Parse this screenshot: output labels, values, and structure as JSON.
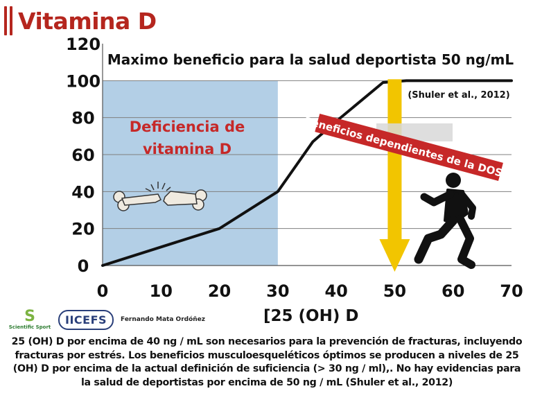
{
  "slide": {
    "title": "Vitamina D",
    "caption": "25 (OH) D por encima de 40 ng / mL son necesarios para la prevención de fracturas, incluyendo fracturas por estrés. Los beneficios musculoesqueléticos óptimos se producen a niveles de 25 (OH) D por encima de la actual definición de suficiencia (> 30 ng / ml),. No hay evidencias para la salud de deportistas por encima de 50 ng / mL (Shuler et al., 2012)",
    "logos": {
      "scientific_sport_mark": "S",
      "scientific_sport": "Scientific Sport",
      "iicefs": "IICEFS"
    },
    "author": "Fernando Mata Ordóñez"
  },
  "chart_data": {
    "type": "line",
    "title": "Maximo beneficio para la salud deportista 50 ng/mL",
    "xlabel": "[25 (OH) D",
    "ylabel": "",
    "xlim": [
      0,
      70
    ],
    "ylim": [
      0,
      120
    ],
    "xticks": [
      0,
      10,
      20,
      30,
      40,
      50,
      60,
      70
    ],
    "yticks": [
      0,
      20,
      40,
      60,
      80,
      100,
      120
    ],
    "grid": true,
    "series": [
      {
        "x": [
          0,
          20,
          30,
          36,
          40,
          48,
          52,
          70
        ],
        "y": [
          0,
          20,
          40,
          67,
          78,
          99,
          100,
          100
        ]
      }
    ],
    "annotations": {
      "deficiency_region": {
        "x_from": 0,
        "x_to": 30,
        "label": "Deficiencia de vitamina D",
        "color": "#b3cfe6"
      },
      "citation": "(Shuler et al., 2012)",
      "dose_banner": "Beneficios dependientes de la DOSIS",
      "optimal_marker_x": 50
    },
    "colors": {
      "line": "#111111",
      "deficiency_label": "#c62828",
      "banner": "#c62828",
      "arrow": "#f2c500"
    }
  }
}
